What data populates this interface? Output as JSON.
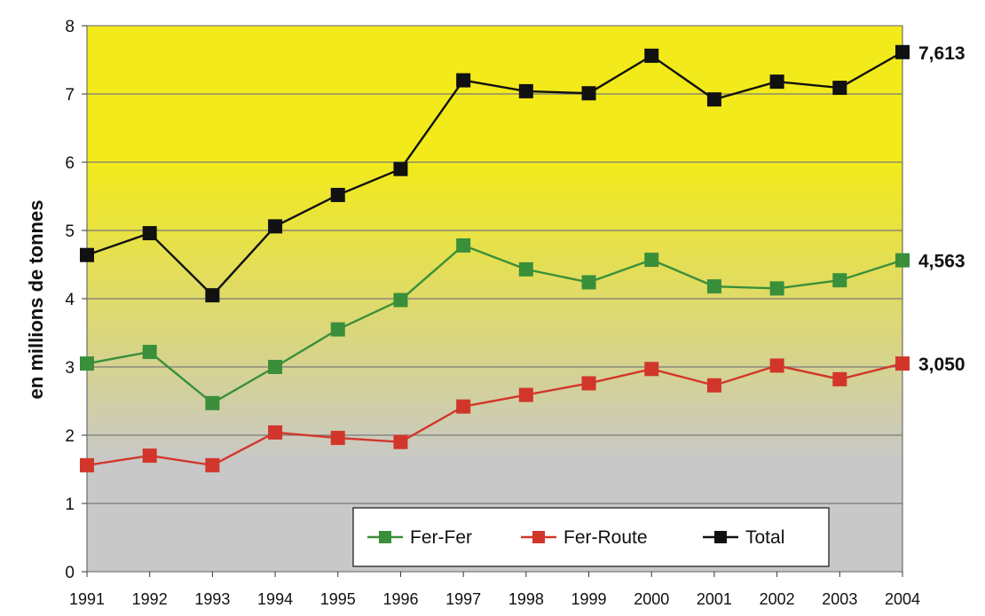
{
  "chart_data": {
    "type": "line",
    "ylabel": "en millions de tonnes",
    "xlabel": "",
    "ylim": [
      0,
      8
    ],
    "yticks": [
      "0",
      "1",
      "2",
      "3",
      "4",
      "5",
      "6",
      "7",
      "8"
    ],
    "grid": true,
    "legend_position": "bottom-right",
    "categories": [
      "1991",
      "1992",
      "1993",
      "1994",
      "1995",
      "1996",
      "1997",
      "1998",
      "1999",
      "2000",
      "2001",
      "2002",
      "2003",
      "2004"
    ],
    "series": [
      {
        "name": "Fer-Fer",
        "color": "#3a8f3a",
        "values": [
          3.05,
          3.22,
          2.47,
          3.0,
          3.55,
          3.98,
          4.78,
          4.43,
          4.24,
          4.57,
          4.18,
          4.15,
          4.27,
          4.563
        ],
        "end_label": "4,563"
      },
      {
        "name": "Fer-Route",
        "color": "#d2362b",
        "values": [
          1.56,
          1.7,
          1.56,
          2.04,
          1.96,
          1.9,
          2.42,
          2.59,
          2.76,
          2.97,
          2.73,
          3.02,
          2.82,
          3.05
        ],
        "end_label": "3,050"
      },
      {
        "name": "Total",
        "color": "#111111",
        "values": [
          4.64,
          4.96,
          4.05,
          5.06,
          5.52,
          5.9,
          7.2,
          7.04,
          7.01,
          7.56,
          6.92,
          7.18,
          7.09,
          7.613
        ],
        "end_label": "7,613"
      }
    ],
    "legend": [
      "Fer-Fer",
      "Fer-Route",
      "Total"
    ],
    "background_gradient": [
      "#f2ea1a",
      "#c8c8c8"
    ]
  }
}
